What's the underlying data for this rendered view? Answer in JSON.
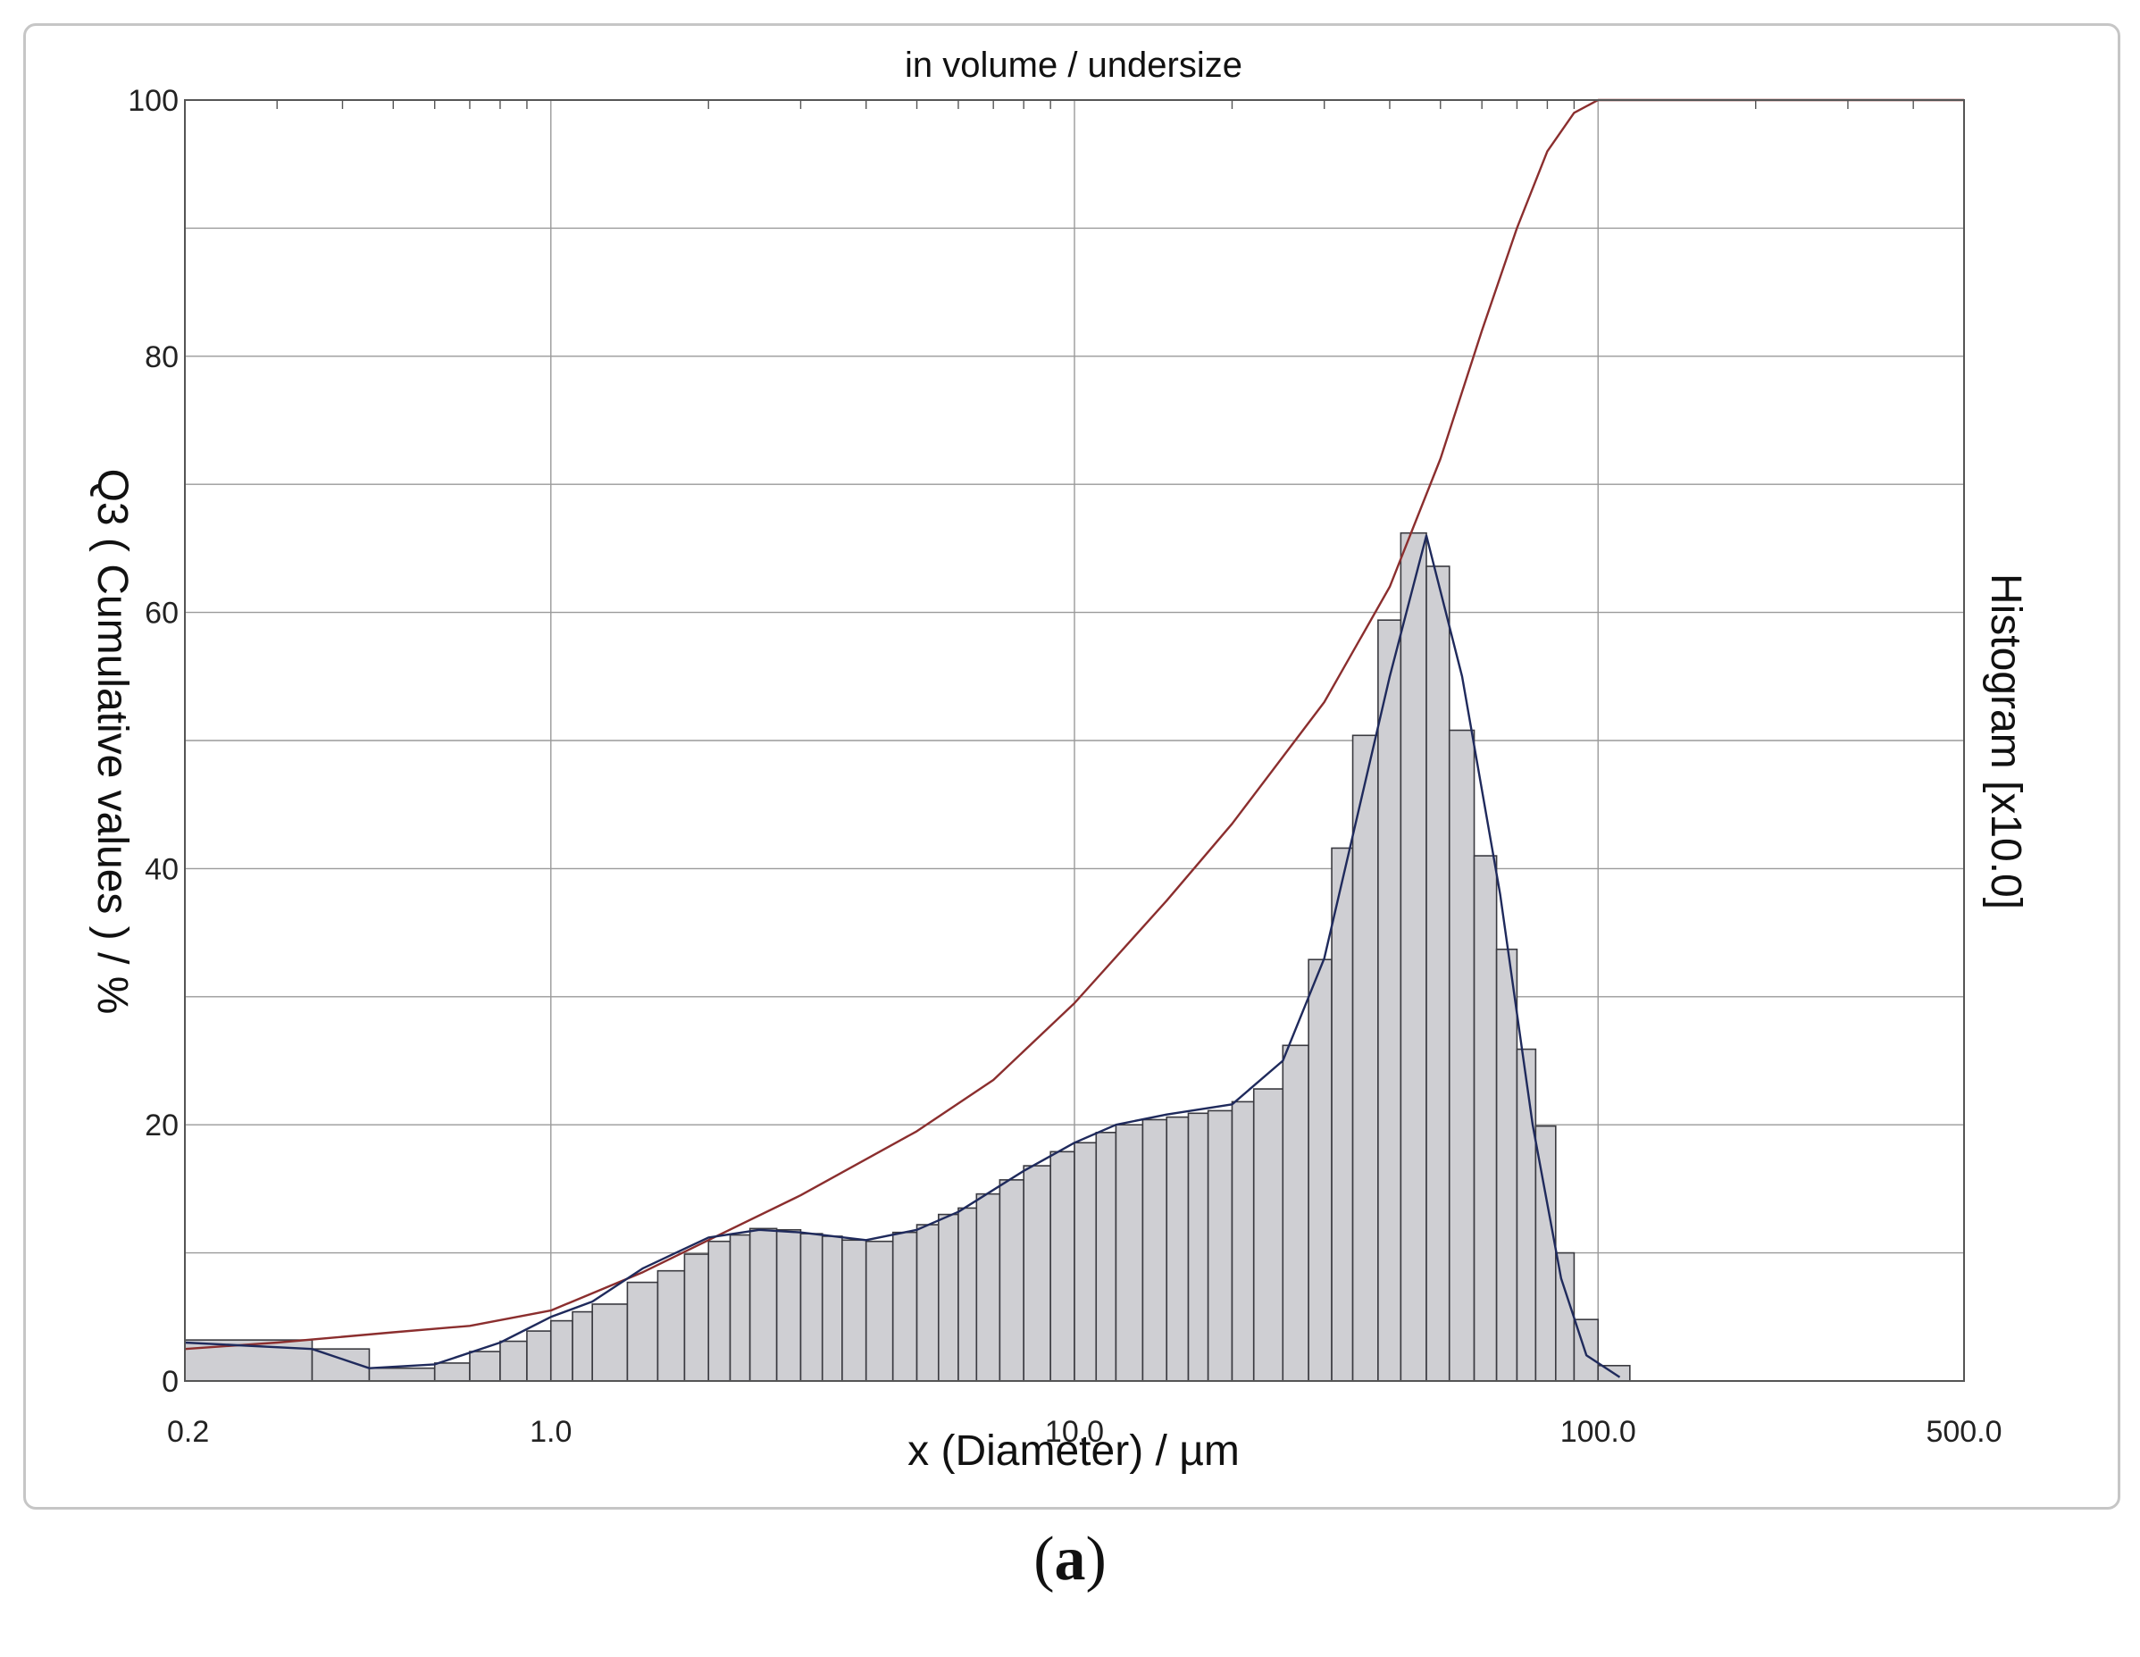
{
  "caption": {
    "open": "(",
    "letter": "a",
    "close": ")"
  },
  "colors": {
    "cumulative_line": "#8b2e2e",
    "density_line": "#1f2a5c",
    "bar_fill": "#cfcfd3",
    "bar_stroke": "#3a3a40",
    "grid": "#9a9a9a"
  },
  "chart_data": {
    "type": "bar",
    "title": "in volume / undersize",
    "xlabel": "x (Diameter) / µm",
    "ylabel": "Q3 ( Cumulative values ) / %",
    "y2label": "Histogram [x10.0]",
    "x_scale": "log",
    "xlim": [
      0.2,
      500.0
    ],
    "ylim": [
      0,
      100
    ],
    "x_tick_labels": [
      "0.2",
      "1.0",
      "10.0",
      "100.0",
      "500.0"
    ],
    "x_tick_values": [
      0.2,
      1.0,
      10.0,
      100.0,
      500.0
    ],
    "y_tick_labels": [
      "0",
      "20",
      "40",
      "60",
      "80",
      "100"
    ],
    "y_tick_values": [
      0,
      20,
      40,
      60,
      80,
      100
    ],
    "grid": true,
    "histogram": {
      "bin_edges": [
        0.2,
        0.35,
        0.45,
        0.6,
        0.7,
        0.8,
        0.9,
        1.0,
        1.1,
        1.2,
        1.4,
        1.6,
        1.8,
        2.0,
        2.2,
        2.4,
        2.7,
        3.0,
        3.3,
        3.6,
        4.0,
        4.5,
        5.0,
        5.5,
        6.0,
        6.5,
        7.2,
        8.0,
        9.0,
        10.0,
        11.0,
        12.0,
        13.5,
        15.0,
        16.5,
        18.0,
        20.0,
        22.0,
        25.0,
        28.0,
        31.0,
        34.0,
        38.0,
        42.0,
        47.0,
        52.0,
        58.0,
        64.0,
        70.0,
        76.0,
        83.0,
        90.0,
        100.0,
        115.0
      ],
      "values": [
        3.2,
        2.5,
        1.0,
        1.4,
        2.3,
        3.1,
        3.9,
        4.7,
        5.4,
        6.0,
        7.7,
        8.6,
        9.9,
        10.9,
        11.4,
        11.9,
        11.8,
        11.5,
        11.3,
        11.0,
        10.9,
        11.6,
        12.2,
        13.0,
        13.5,
        14.6,
        15.7,
        16.8,
        17.9,
        18.6,
        19.4,
        20.0,
        20.4,
        20.6,
        20.9,
        21.1,
        21.8,
        22.8,
        26.2,
        32.9,
        41.6,
        50.4,
        59.4,
        66.2,
        63.6,
        50.8,
        41.0,
        33.7,
        25.9,
        19.9,
        10.0,
        4.8,
        1.2
      ]
    },
    "series": [
      {
        "name": "Q3 ( Cumulative values ) / %",
        "x": [
          0.2,
          0.3,
          0.5,
          0.7,
          1.0,
          1.5,
          2.0,
          3.0,
          5.0,
          7.0,
          10.0,
          15.0,
          20.0,
          30.0,
          40.0,
          50.0,
          60.0,
          70.0,
          80.0,
          90.0,
          100.0,
          500.0
        ],
        "y": [
          2.5,
          3.0,
          3.8,
          4.3,
          5.5,
          8.5,
          11.0,
          14.5,
          19.5,
          23.5,
          29.5,
          37.5,
          43.5,
          53.0,
          62.0,
          72.0,
          82.0,
          90.0,
          96.0,
          99.0,
          100.0,
          100.0
        ]
      },
      {
        "name": "Histogram [x10.0]",
        "x": [
          0.2,
          0.35,
          0.45,
          0.6,
          0.8,
          1.0,
          1.2,
          1.5,
          2.0,
          2.5,
          3.0,
          4.0,
          5.0,
          6.0,
          8.0,
          10.0,
          12.0,
          15.0,
          20.0,
          25.0,
          30.0,
          40.0,
          47.0,
          55.0,
          65.0,
          75.0,
          85.0,
          95.0,
          110.0
        ],
        "y": [
          3.0,
          2.5,
          1.0,
          1.3,
          3.0,
          5.0,
          6.2,
          8.8,
          11.2,
          11.8,
          11.6,
          11.0,
          11.8,
          13.2,
          16.4,
          18.6,
          20.0,
          20.8,
          21.6,
          25.0,
          33.0,
          55.0,
          66.0,
          55.0,
          38.0,
          20.0,
          8.0,
          2.0,
          0.3
        ]
      }
    ]
  }
}
